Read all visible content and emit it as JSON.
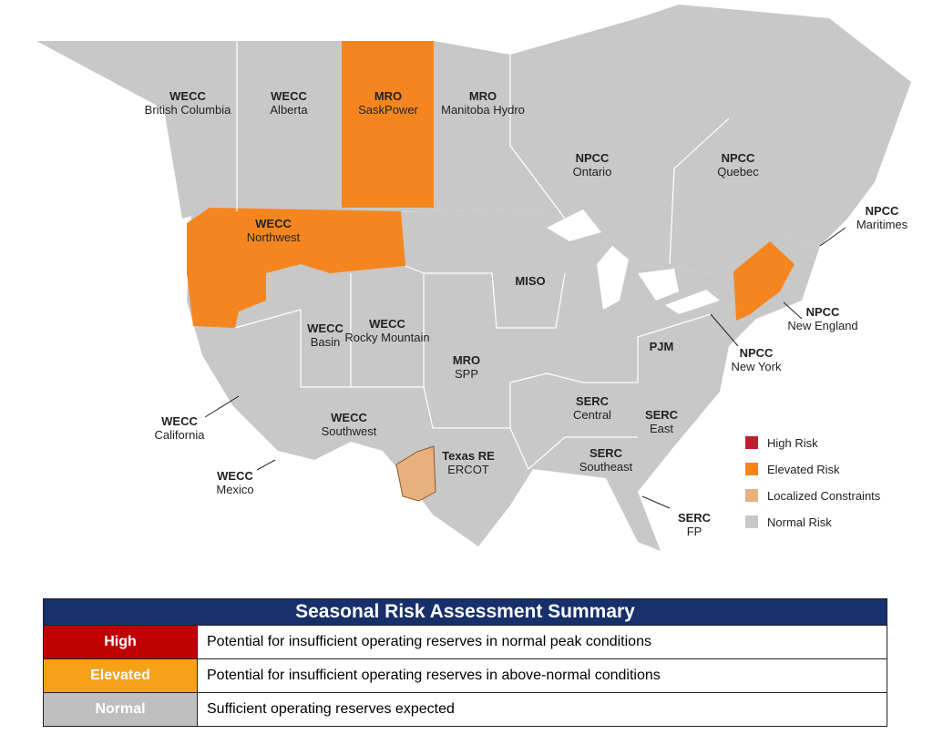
{
  "map": {
    "regions": [
      {
        "org": "WECC",
        "area": "British Columbia"
      },
      {
        "org": "WECC",
        "area": "Alberta"
      },
      {
        "org": "MRO",
        "area": "SaskPower"
      },
      {
        "org": "MRO",
        "area": "Manitoba Hydro"
      },
      {
        "org": "NPCC",
        "area": "Ontario"
      },
      {
        "org": "NPCC",
        "area": "Quebec"
      },
      {
        "org": "NPCC",
        "area": "Maritimes"
      },
      {
        "org": "WECC",
        "area": "Northwest"
      },
      {
        "org": "MISO"
      },
      {
        "org": "NPCC",
        "area": "New England"
      },
      {
        "org": "WECC",
        "area": "Basin"
      },
      {
        "org": "WECC",
        "area": "Rocky Mountain"
      },
      {
        "org": "MRO",
        "area": "SPP"
      },
      {
        "org": "PJM"
      },
      {
        "org": "NPCC",
        "area": "New York"
      },
      {
        "org": "WECC",
        "area": "California"
      },
      {
        "org": "WECC",
        "area": "Southwest"
      },
      {
        "org": "SERC",
        "area": "Central"
      },
      {
        "org": "SERC",
        "area": "East"
      },
      {
        "org": "Texas RE",
        "area": "ERCOT"
      },
      {
        "org": "SERC",
        "area": "Southeast"
      },
      {
        "org": "WECC",
        "area": "Mexico"
      },
      {
        "org": "SERC",
        "area": "FP"
      }
    ]
  },
  "legend": {
    "items": [
      {
        "label": "High Risk",
        "color": "#c0202e"
      },
      {
        "label": "Elevated Risk",
        "color": "#f5861f"
      },
      {
        "label": "Localized Constraints",
        "color": "#e8b07f"
      },
      {
        "label": "Normal Risk",
        "color": "#c8c8c8"
      }
    ]
  },
  "table": {
    "title": "Seasonal Risk Assessment Summary",
    "rows": [
      [
        "High",
        "Potential for insufficient operating reserves in normal peak conditions"
      ],
      [
        "Elevated",
        "Potential for insufficient operating reserves in above-normal conditions"
      ],
      [
        "Normal",
        "Sufficient operating reserves expected"
      ]
    ]
  }
}
